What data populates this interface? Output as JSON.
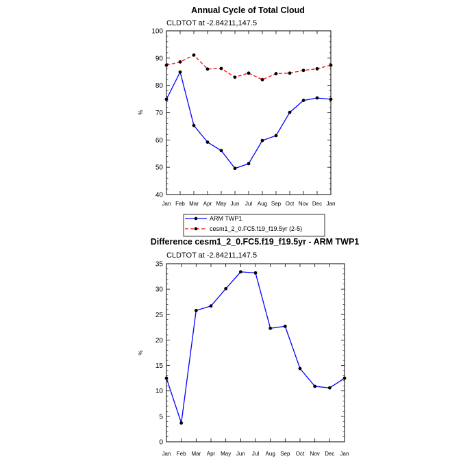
{
  "chart_data": [
    {
      "type": "line",
      "title": "Annual Cycle of Total Cloud",
      "subtitle": "CLDTOT at -2.84211,147.5",
      "xlabel": "",
      "ylabel": "%",
      "ylim": [
        40,
        100
      ],
      "yticks": [
        "40",
        "50",
        "60",
        "70",
        "80",
        "90",
        "100"
      ],
      "categories": [
        "Jan",
        "Feb",
        "Mar",
        "Apr",
        "May",
        "Jun",
        "Jul",
        "Aug",
        "Sep",
        "Oct",
        "Nov",
        "Dec",
        "Jan"
      ],
      "series": [
        {
          "name": "ARM TWP1",
          "color": "#0000ff",
          "style": "solid",
          "values": [
            74.9,
            84.9,
            65.3,
            59.2,
            56.1,
            49.6,
            51.3,
            59.8,
            61.6,
            70.1,
            74.5,
            75.4,
            74.9
          ]
        },
        {
          "name": "cesm1_2_0.FC5.f19_f19.5yr (2-5)",
          "color": "#ff0000",
          "style": "dashed",
          "values": [
            87.4,
            88.6,
            91.1,
            86.0,
            86.2,
            83.0,
            84.5,
            82.1,
            84.3,
            84.5,
            85.5,
            86.1,
            87.4
          ]
        }
      ]
    },
    {
      "type": "line",
      "title": "Difference cesm1_2_0.FC5.f19_f19.5yr - ARM TWP1",
      "subtitle": "CLDTOT at -2.84211,147.5",
      "xlabel": "",
      "ylabel": "%",
      "ylim": [
        0,
        35
      ],
      "yticks": [
        "0",
        "5",
        "10",
        "15",
        "20",
        "25",
        "30",
        "35"
      ],
      "categories": [
        "Jan",
        "Feb",
        "Mar",
        "Apr",
        "May",
        "Jun",
        "Jul",
        "Aug",
        "Sep",
        "Oct",
        "Nov",
        "Dec",
        "Jan"
      ],
      "series": [
        {
          "name": "Difference",
          "color": "#0000ff",
          "style": "solid",
          "values": [
            12.5,
            3.7,
            25.8,
            26.7,
            30.1,
            33.4,
            33.2,
            22.3,
            22.7,
            14.4,
            10.9,
            10.6,
            12.5
          ]
        }
      ]
    }
  ]
}
